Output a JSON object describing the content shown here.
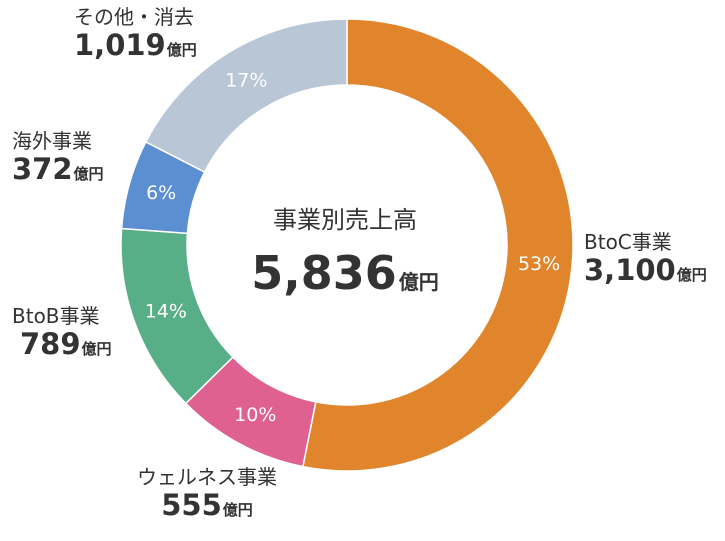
{
  "chart_data": {
    "type": "pie",
    "title": "事業別売上高",
    "total": {
      "value": "5,836",
      "unit": "億円"
    },
    "segments": [
      {
        "name": "BtoC事業",
        "value": 3100,
        "value_label": "3,100",
        "unit": "億円",
        "percent": 53,
        "percent_label": "53%",
        "color": "#E0852C"
      },
      {
        "name": "ウェルネス事業",
        "value": 555,
        "value_label": "555",
        "unit": "億円",
        "percent": 10,
        "percent_label": "10%",
        "color": "#DE6190"
      },
      {
        "name": "BtoB事業",
        "value": 789,
        "value_label": "789",
        "unit": "億円",
        "percent": 14,
        "percent_label": "14%",
        "color": "#58AE86"
      },
      {
        "name": "海外事業",
        "value": 372,
        "value_label": "372",
        "unit": "億円",
        "percent": 6,
        "percent_label": "6%",
        "color": "#5B8FD2"
      },
      {
        "name": "その他・消去",
        "value": 1019,
        "value_label": "1,019",
        "unit": "億円",
        "percent": 17,
        "percent_label": "17%",
        "color": "#B8C6D6"
      }
    ]
  }
}
